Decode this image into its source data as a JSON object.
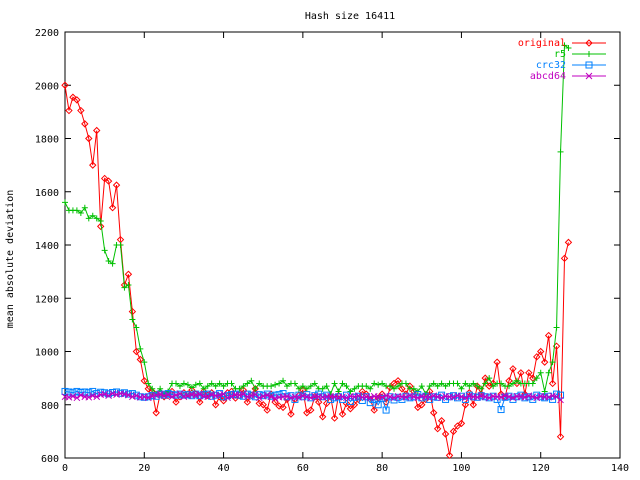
{
  "chart_data": {
    "type": "line",
    "title": "Hash size 16411",
    "xlabel": "",
    "ylabel": "mean absolute deviation",
    "xlim": [
      0,
      140
    ],
    "ylim": [
      600,
      2200
    ],
    "x_ticks": [
      0,
      20,
      40,
      60,
      80,
      100,
      120,
      140
    ],
    "y_ticks": [
      600,
      800,
      1000,
      1200,
      1400,
      1600,
      1800,
      2000,
      2200
    ],
    "grid": false,
    "legend_position": "top-right",
    "series": [
      {
        "name": "original",
        "color": "#ff0000",
        "marker": "diamond",
        "values": [
          2000,
          1905,
          1955,
          1945,
          1905,
          1855,
          1800,
          1700,
          1830,
          1470,
          1650,
          1640,
          1540,
          1625,
          1420,
          1250,
          1290,
          1150,
          1000,
          970,
          890,
          860,
          850,
          770,
          840,
          830,
          835,
          850,
          810,
          830,
          845,
          840,
          855,
          840,
          810,
          850,
          835,
          845,
          800,
          830,
          815,
          845,
          850,
          825,
          835,
          855,
          810,
          835,
          860,
          805,
          800,
          780,
          840,
          810,
          795,
          790,
          820,
          765,
          820,
          835,
          855,
          770,
          780,
          830,
          810,
          755,
          805,
          830,
          750,
          835,
          765,
          805,
          785,
          800,
          820,
          850,
          840,
          820,
          780,
          825,
          840,
          810,
          865,
          880,
          890,
          860,
          840,
          870,
          850,
          790,
          800,
          820,
          850,
          770,
          710,
          740,
          690,
          610,
          700,
          720,
          730,
          800,
          845,
          800,
          870,
          840,
          900,
          870,
          880,
          960,
          840,
          830,
          890,
          935,
          880,
          920,
          840,
          920,
          900,
          980,
          1000,
          960,
          1060,
          880,
          1020,
          680,
          1350,
          1410
        ]
      },
      {
        "name": "r5",
        "color": "#00c000",
        "marker": "plus",
        "values": [
          1560,
          1530,
          1530,
          1530,
          1520,
          1540,
          1500,
          1510,
          1500,
          1490,
          1380,
          1340,
          1330,
          1400,
          1400,
          1240,
          1250,
          1120,
          1090,
          1010,
          960,
          880,
          860,
          840,
          860,
          840,
          850,
          880,
          880,
          870,
          880,
          875,
          865,
          875,
          880,
          860,
          870,
          880,
          870,
          880,
          870,
          880,
          880,
          860,
          860,
          870,
          880,
          890,
          860,
          880,
          870,
          870,
          870,
          875,
          880,
          890,
          870,
          880,
          880,
          860,
          870,
          860,
          870,
          880,
          860,
          860,
          870,
          840,
          880,
          850,
          880,
          870,
          850,
          860,
          870,
          870,
          870,
          860,
          880,
          875,
          880,
          870,
          870,
          860,
          870,
          880,
          880,
          860,
          860,
          850,
          870,
          840,
          870,
          880,
          870,
          880,
          870,
          880,
          880,
          880,
          860,
          880,
          870,
          880,
          870,
          860,
          880,
          900,
          870,
          880,
          880,
          870,
          870,
          880,
          890,
          880,
          880,
          880,
          880,
          900,
          920,
          850,
          920,
          960,
          1090,
          1750,
          2150,
          2140
        ]
      },
      {
        "name": "crc32",
        "color": "#0080ff",
        "marker": "square",
        "values": [
          850,
          848,
          845,
          850,
          846,
          848,
          845,
          850,
          842,
          847,
          845,
          841,
          846,
          848,
          843,
          845,
          840,
          842,
          836,
          830,
          828,
          830,
          835,
          832,
          840,
          836,
          842,
          838,
          836,
          840,
          836,
          838,
          834,
          840,
          834,
          838,
          840,
          832,
          836,
          842,
          830,
          834,
          838,
          840,
          836,
          832,
          840,
          836,
          830,
          838,
          834,
          840,
          832,
          836,
          838,
          842,
          830,
          834,
          820,
          836,
          830,
          838,
          826,
          834,
          840,
          830,
          836,
          820,
          826,
          830,
          820,
          836,
          812,
          828,
          832,
          816,
          830,
          808,
          820,
          800,
          824,
          780,
          830,
          818,
          828,
          820,
          832,
          826,
          830,
          838,
          826,
          832,
          820,
          830,
          828,
          836,
          820,
          830,
          834,
          826,
          832,
          820,
          836,
          830,
          828,
          834,
          830,
          826,
          832,
          820,
          782,
          828,
          832,
          820,
          830,
          836,
          826,
          830,
          820,
          836,
          830,
          826,
          832,
          820,
          840,
          836
        ]
      },
      {
        "name": "abcd64",
        "color": "#c000c0",
        "marker": "x",
        "values": [
          830,
          828,
          832,
          826,
          836,
          830,
          828,
          834,
          830,
          838,
          840,
          834,
          842,
          838,
          842,
          840,
          836,
          830,
          834,
          828,
          830,
          826,
          832,
          836,
          840,
          834,
          838,
          830,
          836,
          842,
          830,
          834,
          838,
          836,
          840,
          832,
          830,
          838,
          834,
          836,
          840,
          826,
          832,
          838,
          836,
          840,
          830,
          834,
          838,
          826,
          832,
          836,
          830,
          824,
          828,
          830,
          832,
          826,
          830,
          828,
          834,
          830,
          826,
          832,
          830,
          828,
          830,
          832,
          830,
          828,
          830,
          826,
          832,
          830,
          834,
          828,
          830,
          826,
          832,
          830,
          828,
          834,
          830,
          826,
          832,
          830,
          828,
          834,
          830,
          826,
          832,
          830,
          828,
          834,
          830,
          826,
          832,
          830,
          828,
          834,
          830,
          826,
          832,
          830,
          828,
          834,
          830,
          826,
          832,
          830,
          828,
          834,
          830,
          826,
          832,
          830,
          828,
          834,
          830,
          826,
          832,
          830,
          828,
          834,
          830,
          818
        ]
      }
    ]
  }
}
